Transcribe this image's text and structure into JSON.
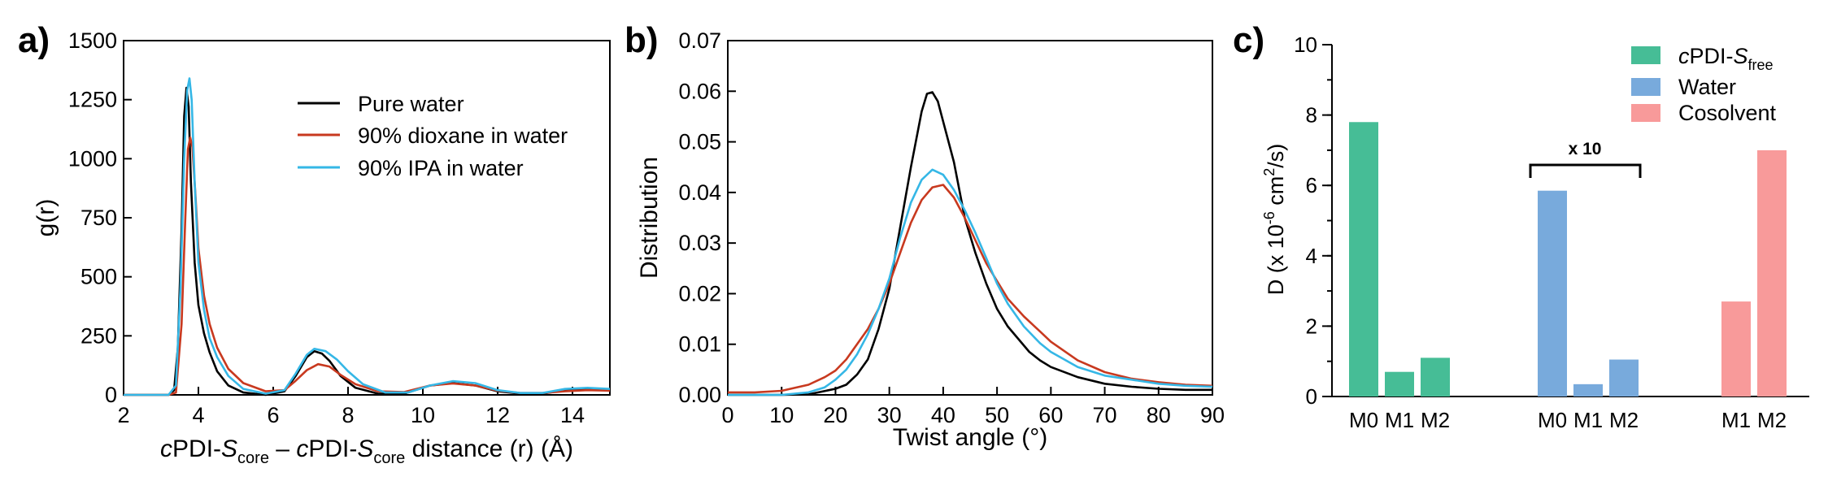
{
  "panels": {
    "a": {
      "label": "a)"
    },
    "b": {
      "label": "b)"
    },
    "c": {
      "label": "c)"
    }
  },
  "colors": {
    "black": "#000000",
    "red": "#c8391f",
    "cyan": "#35b7e6",
    "green": "#46bd96",
    "blue": "#78aadc",
    "pink": "#f89a9a"
  },
  "chart_data": [
    {
      "id": "a",
      "type": "line",
      "title": "",
      "xlabel_parts": [
        "c",
        "PDI-",
        "S",
        "core",
        " – ",
        "c",
        "PDI-",
        "S",
        "core",
        " distance (r) (Å)"
      ],
      "ylabel": "g(r)",
      "xlim": [
        2,
        15
      ],
      "ylim": [
        0,
        1500
      ],
      "xticks": [
        2,
        4,
        6,
        8,
        10,
        12,
        14
      ],
      "yticks": [
        0,
        250,
        500,
        750,
        1000,
        1250,
        1500
      ],
      "legend_position": "top-right",
      "series": [
        {
          "name": "Pure water",
          "color": "#000000",
          "x": [
            2,
            3.2,
            3.35,
            3.45,
            3.55,
            3.62,
            3.68,
            3.74,
            3.8,
            3.9,
            4.0,
            4.15,
            4.3,
            4.5,
            4.8,
            5.2,
            5.8,
            6.3,
            6.6,
            6.9,
            7.1,
            7.3,
            7.5,
            7.8,
            8.2,
            8.8,
            9.5,
            10.2,
            10.8,
            11.4,
            12.0,
            12.6,
            13.2,
            13.8,
            14.4,
            15
          ],
          "y": [
            0,
            0,
            20,
            200,
            700,
            1180,
            1300,
            1220,
            900,
            560,
            380,
            260,
            180,
            100,
            40,
            10,
            0,
            15,
            80,
            160,
            185,
            175,
            145,
            80,
            30,
            5,
            5,
            40,
            50,
            40,
            15,
            5,
            5,
            20,
            25,
            20
          ]
        },
        {
          "name": "90% dioxane in water",
          "color": "#c8391f",
          "x": [
            2,
            3.2,
            3.4,
            3.55,
            3.65,
            3.72,
            3.78,
            3.84,
            3.92,
            4.0,
            4.15,
            4.3,
            4.5,
            4.8,
            5.2,
            5.8,
            6.3,
            6.6,
            6.9,
            7.2,
            7.5,
            7.8,
            8.2,
            8.8,
            9.5,
            10.2,
            10.8,
            11.4,
            12.0,
            12.6,
            13.2,
            13.8,
            14.4,
            15
          ],
          "y": [
            0,
            0,
            10,
            300,
            750,
            1040,
            1090,
            1050,
            850,
            620,
            420,
            300,
            200,
            110,
            50,
            15,
            20,
            60,
            105,
            130,
            120,
            85,
            45,
            15,
            12,
            40,
            48,
            40,
            18,
            8,
            8,
            15,
            20,
            18
          ]
        },
        {
          "name": "90% IPA in water",
          "color": "#35b7e6",
          "x": [
            2,
            3.2,
            3.4,
            3.52,
            3.62,
            3.7,
            3.76,
            3.82,
            3.9,
            4.0,
            4.15,
            4.3,
            4.5,
            4.8,
            5.2,
            5.8,
            6.3,
            6.6,
            6.9,
            7.1,
            7.4,
            7.7,
            8.0,
            8.4,
            9.0,
            9.6,
            10.2,
            10.8,
            11.4,
            12.0,
            12.6,
            13.2,
            13.8,
            14.4,
            15
          ],
          "y": [
            0,
            0,
            40,
            450,
            1000,
            1290,
            1340,
            1250,
            900,
            560,
            360,
            240,
            160,
            80,
            25,
            5,
            20,
            90,
            170,
            195,
            185,
            150,
            100,
            45,
            10,
            10,
            40,
            58,
            50,
            20,
            8,
            8,
            25,
            30,
            25
          ]
        }
      ]
    },
    {
      "id": "b",
      "type": "line",
      "title": "",
      "xlabel": "Twist angle (°)",
      "ylabel": "Distribution",
      "xlim": [
        0,
        90
      ],
      "ylim": [
        0,
        0.07
      ],
      "xticks": [
        0,
        10,
        20,
        30,
        40,
        50,
        60,
        70,
        80,
        90
      ],
      "yticks": [
        "0.00",
        "0.01",
        "0.02",
        "0.03",
        "0.04",
        "0.05",
        "0.06",
        "0.07"
      ],
      "series": [
        {
          "name": "",
          "color": "#000000",
          "x": [
            0,
            10,
            15,
            20,
            22,
            24,
            26,
            28,
            30,
            32,
            34,
            36,
            37,
            38,
            39,
            40,
            42,
            44,
            46,
            48,
            50,
            52,
            54,
            56,
            58,
            60,
            65,
            70,
            75,
            80,
            85,
            90
          ],
          "y": [
            0,
            0,
            0.0001,
            0.0012,
            0.002,
            0.004,
            0.007,
            0.013,
            0.021,
            0.033,
            0.045,
            0.056,
            0.0595,
            0.0598,
            0.058,
            0.054,
            0.046,
            0.035,
            0.028,
            0.022,
            0.017,
            0.0135,
            0.011,
            0.0085,
            0.0068,
            0.0055,
            0.0035,
            0.0022,
            0.0016,
            0.0012,
            0.001,
            0.001
          ]
        },
        {
          "name": "",
          "color": "#c8391f",
          "x": [
            0,
            5,
            10,
            15,
            18,
            20,
            22,
            24,
            26,
            28,
            30,
            32,
            34,
            36,
            38,
            40,
            42,
            44,
            46,
            48,
            50,
            52,
            55,
            58,
            60,
            65,
            70,
            75,
            80,
            85,
            90
          ],
          "y": [
            0.0005,
            0.0005,
            0.0008,
            0.002,
            0.0035,
            0.0048,
            0.007,
            0.01,
            0.013,
            0.017,
            0.022,
            0.028,
            0.034,
            0.0385,
            0.041,
            0.0415,
            0.039,
            0.035,
            0.0305,
            0.026,
            0.0225,
            0.019,
            0.0155,
            0.0125,
            0.0105,
            0.0068,
            0.0045,
            0.0032,
            0.0025,
            0.002,
            0.0018
          ]
        },
        {
          "name": "",
          "color": "#35b7e6",
          "x": [
            0,
            10,
            15,
            18,
            20,
            22,
            24,
            26,
            28,
            30,
            32,
            34,
            36,
            38,
            40,
            42,
            44,
            46,
            48,
            50,
            52,
            55,
            58,
            60,
            65,
            70,
            75,
            80,
            85,
            90
          ],
          "y": [
            0,
            0,
            0.0005,
            0.0015,
            0.003,
            0.005,
            0.008,
            0.012,
            0.017,
            0.023,
            0.031,
            0.038,
            0.0425,
            0.0445,
            0.0435,
            0.0405,
            0.0365,
            0.032,
            0.027,
            0.022,
            0.018,
            0.0135,
            0.0102,
            0.0085,
            0.0055,
            0.0038,
            0.003,
            0.0022,
            0.0018,
            0.0016
          ]
        }
      ]
    },
    {
      "id": "c",
      "type": "bar",
      "title": "",
      "ylabel_parts": [
        "D (x 10",
        "-6",
        " cm",
        "2",
        "/s)"
      ],
      "ylim": [
        0,
        10
      ],
      "yticks": [
        0,
        2,
        4,
        6,
        8,
        10
      ],
      "groups": [
        {
          "categories": [
            "M0",
            "M1",
            "M2"
          ],
          "series": "cPDI-Sfree",
          "color": "#46bd96",
          "values": [
            7.8,
            0.7,
            1.1
          ]
        },
        {
          "categories": [
            "M0",
            "M1",
            "M2"
          ],
          "series": "Water",
          "color": "#78aadc",
          "values": [
            5.85,
            0.35,
            1.05
          ]
        },
        {
          "categories": [
            "M1",
            "M2"
          ],
          "series": "Cosolvent",
          "color": "#f89a9a",
          "values": [
            2.7,
            7.0
          ]
        }
      ],
      "bracket_label": "x 10",
      "legend_position": "top-right",
      "legend": [
        {
          "name_parts": [
            "c",
            "PDI-",
            "S",
            "free"
          ],
          "color": "#46bd96"
        },
        {
          "name": "Water",
          "color": "#78aadc"
        },
        {
          "name": "Cosolvent",
          "color": "#f89a9a"
        }
      ]
    }
  ]
}
